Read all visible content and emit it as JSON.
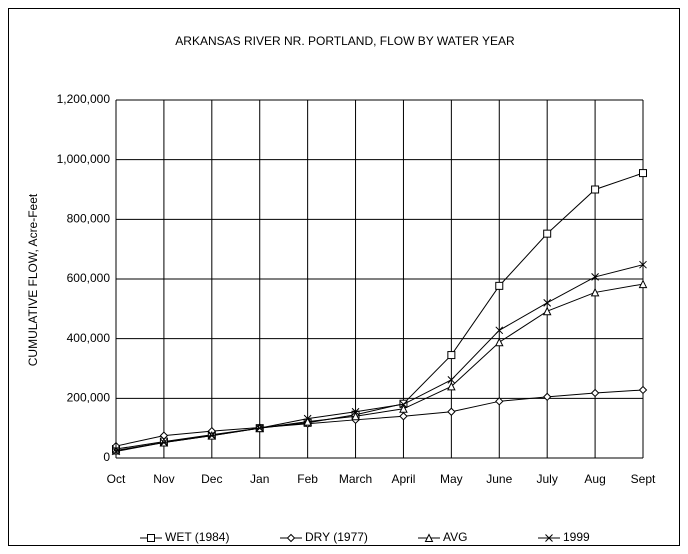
{
  "chart_data": {
    "type": "line",
    "title": "ARKANSAS RIVER NR. PORTLAND, FLOW BY WATER YEAR",
    "y_label": "CUMULATIVE FLOW, Acre-Feet",
    "categories": [
      "Oct",
      "Nov",
      "Dec",
      "Jan",
      "Feb",
      "March",
      "April",
      "May",
      "June",
      "July",
      "Aug",
      "Sept"
    ],
    "series": [
      {
        "name": "WET (1984)",
        "color": "#000000",
        "marker": "square",
        "values": [
          30000,
          55000,
          78000,
          100000,
          118000,
          145000,
          182000,
          345000,
          577000,
          752000,
          900000,
          955000
        ]
      },
      {
        "name": "DRY (1977)",
        "color": "#000000",
        "marker": "diamond",
        "values": [
          40000,
          75000,
          90000,
          102000,
          115000,
          128000,
          140000,
          155000,
          190000,
          205000,
          218000,
          228000
        ]
      },
      {
        "name": "AVG",
        "color": "#000000",
        "marker": "triangle",
        "values": [
          25000,
          52000,
          75000,
          100000,
          122000,
          140000,
          165000,
          240000,
          388000,
          492000,
          555000,
          583000
        ]
      },
      {
        "name": "1999",
        "color": "#000000",
        "marker": "x",
        "values": [
          22000,
          52000,
          75000,
          100000,
          132000,
          155000,
          180000,
          262000,
          428000,
          520000,
          607000,
          648000
        ]
      }
    ],
    "ylim": [
      0,
      1200000
    ],
    "yticks": [
      0,
      {
        "value": 200000,
        "label": "200,000"
      },
      {
        "value": 400000,
        "label": "400,000"
      },
      {
        "value": 600000,
        "label": "600,000"
      },
      {
        "value": 800000,
        "label": "800,000"
      },
      {
        "value": 1000000,
        "label": "1,000,000"
      },
      {
        "value": 1200000,
        "label": "1,200,000"
      }
    ],
    "grid": true,
    "legend": "bottom"
  }
}
